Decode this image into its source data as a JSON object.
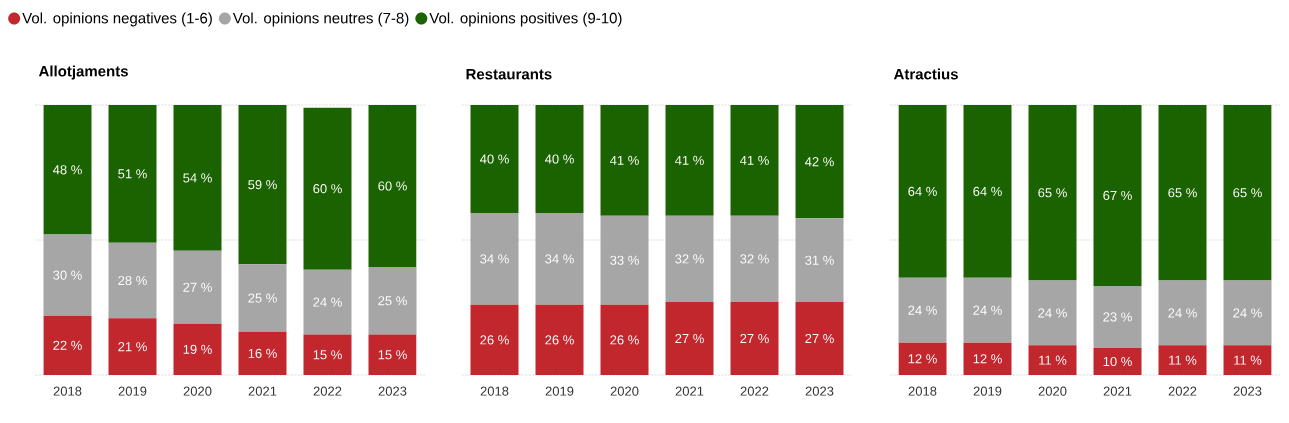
{
  "chart_data": [
    {
      "type": "bar",
      "stacked": true,
      "title": "Allotjaments",
      "categories": [
        "2018",
        "2019",
        "2020",
        "2021",
        "2022",
        "2023"
      ],
      "ylim": [
        0,
        100
      ],
      "yticks": [
        {
          "value": 0,
          "label": null
        },
        {
          "value": 50,
          "label": null
        },
        {
          "value": 100,
          "label": null
        }
      ],
      "grid": "y",
      "tick_labels": "x",
      "legend": "top",
      "series": [
        {
          "name": "Vol. opinions negatives (1-6)",
          "color": "#c1272d",
          "values": [
            22,
            21,
            19,
            16,
            15,
            15
          ],
          "value_labels": [
            "22 %",
            "21 %",
            "19 %",
            "16 %",
            "15 %",
            "15 %"
          ]
        },
        {
          "name": "Vol. opinions neutres (7-8)",
          "color": "#a6a6a6",
          "values": [
            30,
            28,
            27,
            25,
            24,
            25
          ],
          "value_labels": [
            "30 %",
            "28 %",
            "27 %",
            "25 %",
            "24 %",
            "25 %"
          ]
        },
        {
          "name": "Vol. opinions positives (9-10)",
          "color": "#1b6300",
          "values": [
            48,
            51,
            54,
            59,
            60,
            60
          ],
          "value_labels": [
            "48 %",
            "51 %",
            "54 %",
            "59 %",
            "60 %",
            "60 %"
          ]
        }
      ]
    },
    {
      "type": "bar",
      "stacked": true,
      "title": "Restaurants",
      "categories": [
        "2018",
        "2019",
        "2020",
        "2021",
        "2022",
        "2023"
      ],
      "ylim": [
        0,
        100
      ],
      "yticks": [
        {
          "value": 0,
          "label": null
        },
        {
          "value": 50,
          "label": null
        },
        {
          "value": 100,
          "label": null
        }
      ],
      "grid": "y",
      "tick_labels": "x",
      "series": [
        {
          "color": "#c1272d",
          "values": [
            26,
            26,
            26,
            27,
            27,
            27
          ],
          "value_labels": [
            "26 %",
            "26 %",
            "26 %",
            "27 %",
            "27 %",
            "27 %"
          ]
        },
        {
          "color": "#a6a6a6",
          "values": [
            34,
            34,
            33,
            32,
            32,
            31
          ],
          "value_labels": [
            "34 %",
            "34 %",
            "33 %",
            "32 %",
            "32 %",
            "31 %"
          ]
        },
        {
          "color": "#1b6300",
          "values": [
            40,
            40,
            41,
            41,
            41,
            42
          ],
          "value_labels": [
            "40 %",
            "40 %",
            "41 %",
            "41 %",
            "41 %",
            "42 %"
          ]
        }
      ]
    },
    {
      "type": "bar",
      "stacked": true,
      "title": "Atractius",
      "categories": [
        "2018",
        "2019",
        "2020",
        "2021",
        "2022",
        "2023"
      ],
      "ylim": [
        0,
        100
      ],
      "yticks": [
        {
          "value": 0,
          "label": null
        },
        {
          "value": 50,
          "label": null
        },
        {
          "value": 100,
          "label": null
        }
      ],
      "grid": "y",
      "tick_labels": "x",
      "series": [
        {
          "color": "#c1272d",
          "values": [
            12,
            12,
            11,
            10,
            11,
            11
          ],
          "value_labels": [
            "12 %",
            "12 %",
            "11 %",
            "10 %",
            "11 %",
            "11 %"
          ]
        },
        {
          "color": "#a6a6a6",
          "values": [
            24,
            24,
            24,
            23,
            24,
            24
          ],
          "value_labels": [
            "24 %",
            "24 %",
            "24 %",
            "23 %",
            "24 %",
            "24 %"
          ]
        },
        {
          "color": "#1b6300",
          "values": [
            64,
            64,
            65,
            67,
            65,
            65
          ],
          "value_labels": [
            "64 %",
            "64 %",
            "65 %",
            "67 %",
            "65 %",
            "65 %"
          ]
        }
      ]
    }
  ]
}
